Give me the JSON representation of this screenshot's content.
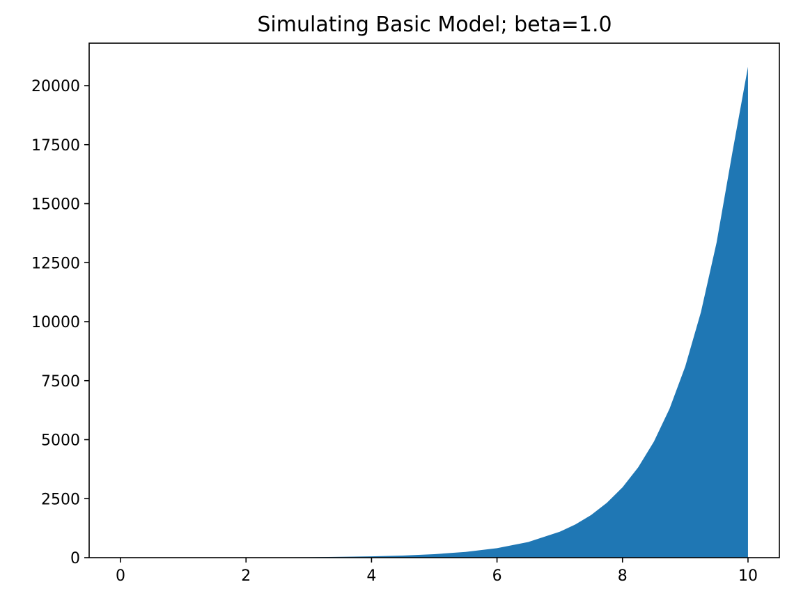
{
  "chart_data": {
    "type": "area",
    "title": "Simulating Basic Model; beta=1.0",
    "xlabel": "",
    "ylabel": "",
    "xlim": [
      -0.5,
      10.5
    ],
    "ylim": [
      0,
      21800
    ],
    "xticks": [
      0,
      2,
      4,
      6,
      8,
      10
    ],
    "xtick_labels": [
      "0",
      "2",
      "4",
      "6",
      "8",
      "10"
    ],
    "yticks": [
      0,
      2500,
      5000,
      7500,
      10000,
      12500,
      15000,
      17500,
      20000
    ],
    "ytick_labels": [
      "0",
      "2500",
      "5000",
      "7500",
      "10000",
      "12500",
      "15000",
      "17500",
      "20000"
    ],
    "grid": false,
    "series": [
      {
        "color": "#1f77b4",
        "x": [
          0,
          1,
          2,
          3,
          4,
          4.5,
          5,
          5.5,
          6,
          6.5,
          7,
          7.25,
          7.5,
          7.75,
          8,
          8.25,
          8.5,
          8.75,
          9,
          9.25,
          9.5,
          9.75,
          10
        ],
        "y": [
          1,
          3,
          7,
          20,
          55,
          90,
          148,
          245,
          403,
          665,
          1097,
          1408,
          1808,
          2322,
          2981,
          3827,
          4915,
          6311,
          8103,
          10405,
          13360,
          17154,
          20800
        ]
      }
    ]
  }
}
